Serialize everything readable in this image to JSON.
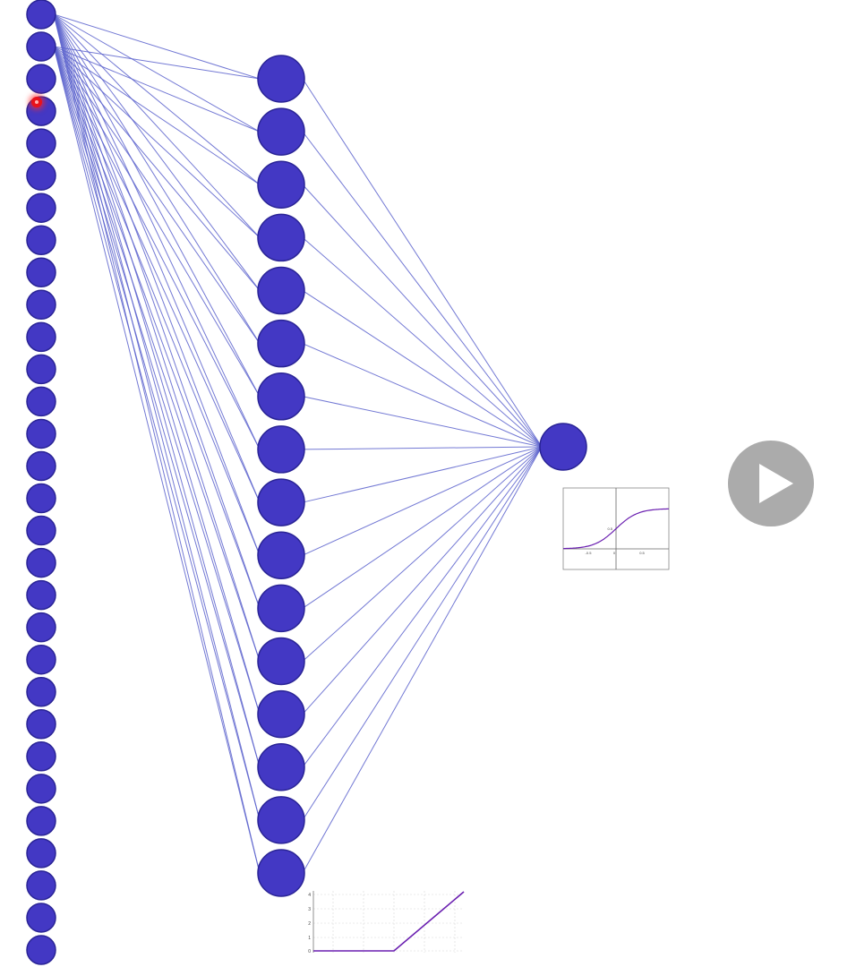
{
  "diagram": {
    "layers": [
      {
        "name": "input",
        "count": 30
      },
      {
        "name": "hidden",
        "count": 16
      },
      {
        "name": "output",
        "count": 1
      }
    ],
    "colors": {
      "node_fill": "#4338c4",
      "node_stroke": "#2a2496",
      "edge": "#5a62cc",
      "curve": "#6a1fb0"
    },
    "connections": {
      "input_sources_drawn": [
        0,
        1
      ]
    }
  },
  "sigmoid_plot": {
    "x_ticks": [
      "-0.5",
      "0",
      "0.5"
    ],
    "y_ticks": [
      "0.5"
    ]
  },
  "relu_plot": {
    "y_ticks": [
      "4",
      "3",
      "2",
      "1",
      "0"
    ]
  },
  "controls": {
    "play_icon": "play-icon",
    "cursor_icon": "cursor-highlight-icon"
  }
}
